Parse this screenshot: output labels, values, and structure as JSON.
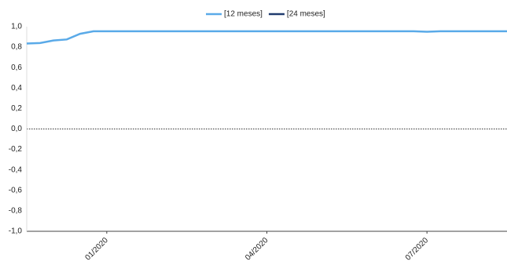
{
  "chart_data": {
    "type": "line",
    "categories": [
      null,
      null,
      null,
      null,
      null,
      null,
      "01/2020",
      null,
      null,
      null,
      null,
      null,
      null,
      null,
      null,
      null,
      null,
      null,
      "04/2020",
      null,
      null,
      null,
      null,
      null,
      null,
      null,
      null,
      null,
      null,
      null,
      "07/2020",
      null,
      null,
      null,
      null,
      null,
      null
    ],
    "series": [
      {
        "name": "[12 meses]",
        "color": "#5aaae8",
        "values": [
          0.835,
          0.84,
          0.865,
          0.875,
          0.93,
          0.955,
          0.955,
          0.955,
          0.955,
          0.955,
          0.955,
          0.955,
          0.955,
          0.955,
          0.955,
          0.955,
          0.955,
          0.955,
          0.955,
          0.955,
          0.955,
          0.955,
          0.955,
          0.955,
          0.955,
          0.955,
          0.955,
          0.955,
          0.955,
          0.955,
          0.95,
          0.955,
          0.955,
          0.955,
          0.955,
          0.955,
          0.955
        ]
      },
      {
        "name": "[24 meses]",
        "color": "#1f3a6e",
        "values": [
          null,
          null,
          null,
          null,
          null,
          null,
          null,
          null,
          null,
          null,
          null,
          null,
          null,
          null,
          null,
          null,
          null,
          null,
          null,
          null,
          null,
          null,
          null,
          null,
          null,
          null,
          null,
          null,
          null,
          null,
          null,
          null,
          null,
          null,
          null,
          null,
          null
        ]
      }
    ],
    "ylim": [
      -1,
      1
    ],
    "yticks": [
      {
        "value": 1,
        "label": "1,0"
      },
      {
        "value": 0.8,
        "label": "0,8"
      },
      {
        "value": 0.6,
        "label": "0,6"
      },
      {
        "value": 0.4,
        "label": "0,4"
      },
      {
        "value": 0.2,
        "label": "0,2"
      },
      {
        "value": 0,
        "label": "0,0"
      },
      {
        "value": -0.2,
        "label": "-0,2"
      },
      {
        "value": -0.4,
        "label": "-0,4"
      },
      {
        "value": -0.6,
        "label": "-0,6"
      },
      {
        "value": -0.8,
        "label": "-0,8"
      },
      {
        "value": -1,
        "label": "-1,0"
      }
    ],
    "zero_line": true,
    "legend": "top"
  }
}
